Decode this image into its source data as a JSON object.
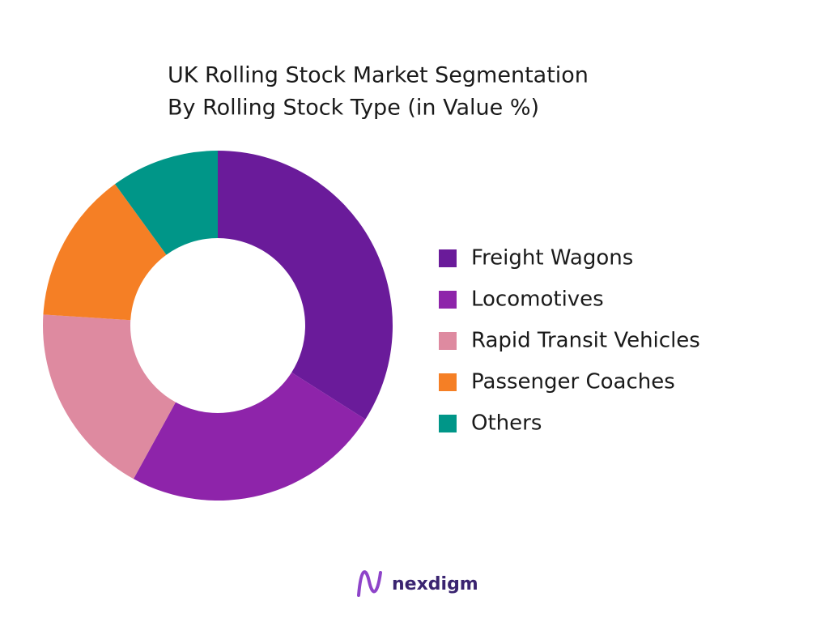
{
  "chart_data": {
    "type": "donut",
    "title": "UK Rolling Stock Market Segmentation",
    "subtitle": "By Rolling Stock Type (in Value %)",
    "categories": [
      "Freight Wagons",
      "Locomotives",
      "Rapid Transit Vehicles",
      "Passenger Coaches",
      "Others"
    ],
    "values": [
      34,
      24,
      18,
      14,
      10
    ],
    "colors": [
      "#6a1b9a",
      "#8e24aa",
      "#de8aa0",
      "#f57f25",
      "#009688"
    ],
    "legend": "right",
    "brand": "nexdigm"
  }
}
